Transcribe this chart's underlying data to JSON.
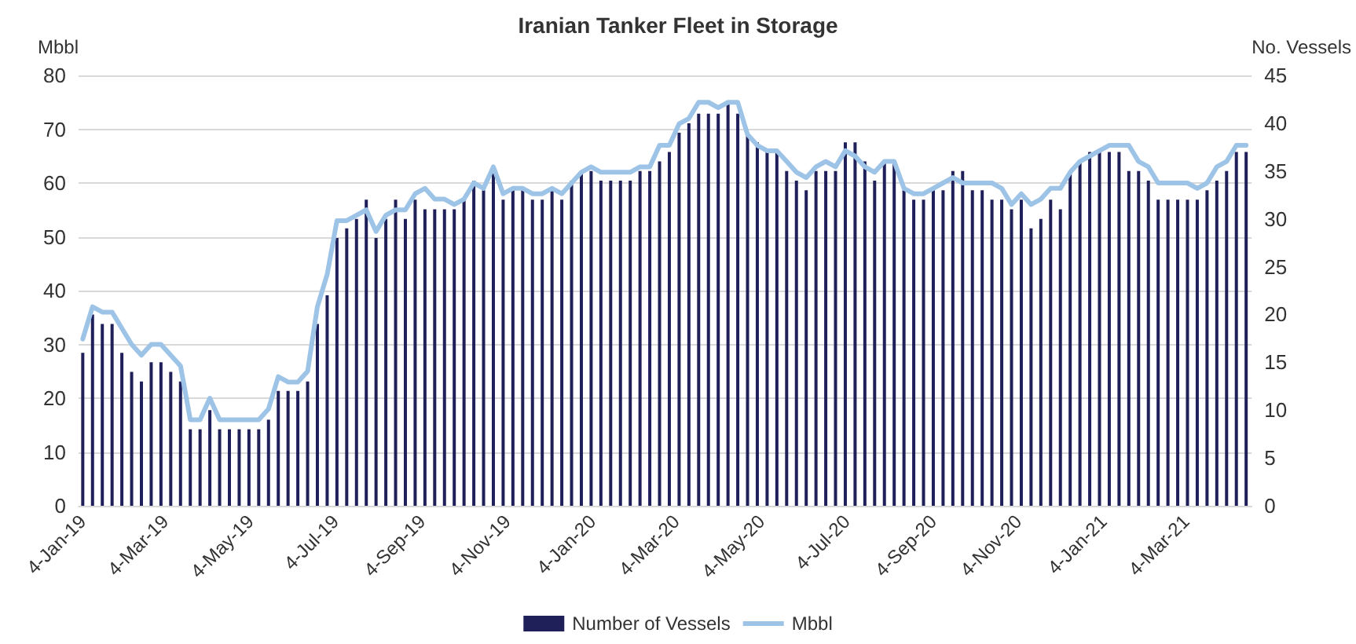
{
  "chart_data": {
    "type": "bar",
    "title": "Iranian Tanker Fleet in Storage",
    "ylabel": "Mbbl",
    "y2label": "No. Vessels",
    "x": [
      "2019-01-04",
      "2019-01-11",
      "2019-01-18",
      "2019-01-25",
      "2019-02-01",
      "2019-02-08",
      "2019-02-15",
      "2019-02-22",
      "2019-03-01",
      "2019-03-08",
      "2019-03-15",
      "2019-03-22",
      "2019-03-29",
      "2019-04-05",
      "2019-04-12",
      "2019-04-19",
      "2019-04-26",
      "2019-05-03",
      "2019-05-10",
      "2019-05-17",
      "2019-05-24",
      "2019-05-31",
      "2019-06-07",
      "2019-06-14",
      "2019-06-21",
      "2019-06-28",
      "2019-07-05",
      "2019-07-12",
      "2019-07-19",
      "2019-07-26",
      "2019-08-02",
      "2019-08-09",
      "2019-08-16",
      "2019-08-23",
      "2019-08-30",
      "2019-09-06",
      "2019-09-13",
      "2019-09-20",
      "2019-09-27",
      "2019-10-04",
      "2019-10-11",
      "2019-10-18",
      "2019-10-25",
      "2019-11-01",
      "2019-11-08",
      "2019-11-15",
      "2019-11-22",
      "2019-11-29",
      "2019-12-06",
      "2019-12-13",
      "2019-12-20",
      "2019-12-27",
      "2020-01-03",
      "2020-01-10",
      "2020-01-17",
      "2020-01-24",
      "2020-01-31",
      "2020-02-07",
      "2020-02-14",
      "2020-02-21",
      "2020-02-28",
      "2020-03-06",
      "2020-03-13",
      "2020-03-20",
      "2020-03-27",
      "2020-04-03",
      "2020-04-10",
      "2020-04-17",
      "2020-04-24",
      "2020-05-01",
      "2020-05-08",
      "2020-05-15",
      "2020-05-22",
      "2020-05-29",
      "2020-06-05",
      "2020-06-12",
      "2020-06-19",
      "2020-06-26",
      "2020-07-03",
      "2020-07-10",
      "2020-07-17",
      "2020-07-24",
      "2020-07-31",
      "2020-08-07",
      "2020-08-14",
      "2020-08-21",
      "2020-08-28",
      "2020-09-04",
      "2020-09-11",
      "2020-09-18",
      "2020-09-25",
      "2020-10-02",
      "2020-10-09",
      "2020-10-16",
      "2020-10-23",
      "2020-10-30",
      "2020-11-06",
      "2020-11-13",
      "2020-11-20",
      "2020-11-27",
      "2020-12-04",
      "2020-12-11",
      "2020-12-18",
      "2020-12-25",
      "2021-01-01",
      "2021-01-08",
      "2021-01-15",
      "2021-01-22",
      "2021-01-29",
      "2021-02-05",
      "2021-02-12",
      "2021-02-19",
      "2021-02-26",
      "2021-03-05",
      "2021-03-12",
      "2021-03-19",
      "2021-03-26",
      "2021-04-02",
      "2021-04-09",
      "2021-04-16"
    ],
    "series": [
      {
        "name": "Number of Vessels",
        "axis": "y2",
        "color": "#1f1f5a",
        "values": [
          16,
          20,
          19,
          19,
          16,
          14,
          13,
          15,
          15,
          14,
          13,
          8,
          8,
          10,
          8,
          8,
          8,
          8,
          8,
          9,
          12,
          12,
          12,
          13,
          19,
          22,
          28,
          29,
          30,
          32,
          28,
          30,
          32,
          30,
          32,
          31,
          31,
          31,
          31,
          32,
          34,
          33,
          35,
          32,
          33,
          33,
          32,
          32,
          33,
          32,
          34,
          35,
          35,
          34,
          34,
          34,
          34,
          35,
          35,
          36,
          37,
          39,
          40,
          41,
          41,
          41,
          42,
          41,
          39,
          38,
          37,
          37,
          35,
          34,
          33,
          35,
          35,
          35,
          38,
          38,
          36,
          34,
          36,
          36,
          33,
          32,
          32,
          33,
          33,
          35,
          35,
          33,
          33,
          32,
          32,
          31,
          32,
          29,
          30,
          32,
          31,
          35,
          36,
          37,
          37,
          37,
          37,
          35,
          35,
          34,
          32,
          32,
          32,
          32,
          32,
          33,
          34,
          35,
          37,
          37
        ]
      },
      {
        "name": "Mbbl",
        "color": "#9dc3e6",
        "type": "line",
        "values": [
          31,
          37,
          36,
          36,
          33,
          30,
          28,
          30,
          30,
          28,
          26,
          16,
          16,
          20,
          16,
          16,
          16,
          16,
          16,
          18,
          24,
          23,
          23,
          25,
          37,
          43,
          53,
          53,
          54,
          55,
          51,
          54,
          55,
          55,
          58,
          59,
          57,
          57,
          56,
          57,
          60,
          59,
          63,
          58,
          59,
          59,
          58,
          58,
          59,
          58,
          60,
          62,
          63,
          62,
          62,
          62,
          62,
          63,
          63,
          67,
          67,
          71,
          72,
          75,
          75,
          74,
          75,
          75,
          69,
          67,
          66,
          66,
          64,
          62,
          61,
          63,
          64,
          63,
          66,
          65,
          63,
          62,
          64,
          64,
          59,
          58,
          58,
          59,
          60,
          61,
          60,
          60,
          60,
          60,
          59,
          56,
          58,
          56,
          57,
          59,
          59,
          62,
          64,
          65,
          66,
          67,
          67,
          67,
          64,
          63,
          60,
          60,
          60,
          60,
          59,
          60,
          63,
          64,
          67,
          67
        ]
      }
    ],
    "xlim": [
      "2019-01-01",
      "2021-04-20"
    ],
    "xticks": [
      {
        "value": "2019-01-04",
        "label": "4-Jan-19"
      },
      {
        "value": "2019-03-04",
        "label": "4-Mar-19"
      },
      {
        "value": "2019-05-04",
        "label": "4-May-19"
      },
      {
        "value": "2019-07-04",
        "label": "4-Jul-19"
      },
      {
        "value": "2019-09-04",
        "label": "4-Sep-19"
      },
      {
        "value": "2019-11-04",
        "label": "4-Nov-19"
      },
      {
        "value": "2020-01-04",
        "label": "4-Jan-20"
      },
      {
        "value": "2020-03-04",
        "label": "4-Mar-20"
      },
      {
        "value": "2020-05-04",
        "label": "4-May-20"
      },
      {
        "value": "2020-07-04",
        "label": "4-Jul-20"
      },
      {
        "value": "2020-09-04",
        "label": "4-Sep-20"
      },
      {
        "value": "2020-11-04",
        "label": "4-Nov-20"
      },
      {
        "value": "2021-01-04",
        "label": "4-Jan-21"
      },
      {
        "value": "2021-03-04",
        "label": "4-Mar-21"
      }
    ],
    "ylim": [
      0,
      80
    ],
    "yticks": [
      0,
      10,
      20,
      30,
      40,
      50,
      60,
      70,
      80
    ],
    "y2lim": [
      0,
      45
    ],
    "y2ticks": [
      0,
      5,
      10,
      15,
      20,
      25,
      30,
      35,
      40,
      45
    ],
    "grid": "y",
    "legend": "bottom",
    "marker": "none"
  }
}
